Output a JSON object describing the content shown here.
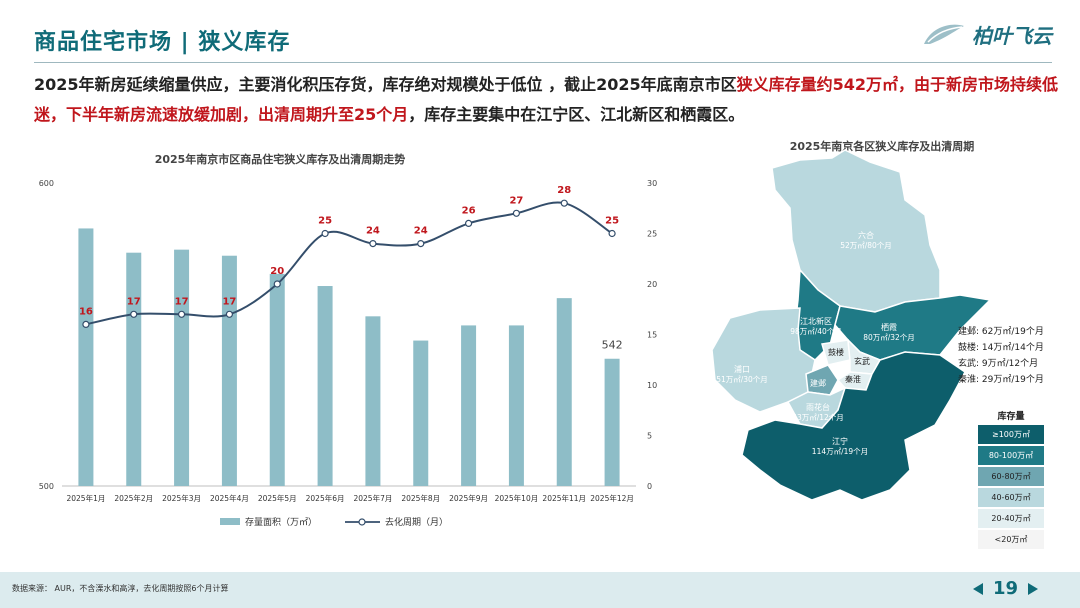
{
  "header": {
    "title": "商品住宅市场 | 狭义库存",
    "logo_text": "柏叶飞云"
  },
  "headline": {
    "part1": "2025年新房延续缩量供应，主要消化积压存货，库存绝对规模处于低位 ，截止2025年底南京市区",
    "part2": "狭义库存量约542万㎡，由于新房市场持续低迷，下半年新房流速放缓加剧，出清周期升至25个月",
    "part3": "，库存主要集中在江宁区、江北新区和栖霞区。"
  },
  "chart_data": {
    "type": "bar",
    "title": "2025年南京市区商品住宅狭义库存及出清周期走势",
    "categories": [
      "2025年1月",
      "2025年2月",
      "2025年3月",
      "2025年4月",
      "2025年5月",
      "2025年6月",
      "2025年7月",
      "2025年8月",
      "2025年9月",
      "2025年10月",
      "2025年11月",
      "2025年12月"
    ],
    "series": [
      {
        "name": "存量面积（万㎡）",
        "type": "bar",
        "axis": "left",
        "color": "#8ebdc7",
        "values": [
          585,
          577,
          578,
          576,
          570,
          566,
          556,
          548,
          553,
          553,
          562,
          542
        ],
        "labels": [
          "",
          "",
          "",
          "",
          "",
          "",
          "",
          "",
          "",
          "",
          "",
          "542"
        ]
      },
      {
        "name": "去化周期（月）",
        "type": "line",
        "axis": "right",
        "color": "#344e6b",
        "values": [
          16,
          17,
          17,
          17,
          20,
          25,
          24,
          24,
          26,
          27,
          28,
          25
        ]
      }
    ],
    "y_left": {
      "ticks": [
        "600",
        "500"
      ],
      "range": [
        500,
        600
      ]
    },
    "y_right": {
      "ticks": [
        "30",
        "25",
        "20",
        "15",
        "10",
        "5",
        "0"
      ],
      "range": [
        0,
        30
      ]
    },
    "legend": "bottom",
    "grid": false
  },
  "map": {
    "title": "2025年南京各区狭义库存及出清周期",
    "regions": [
      {
        "id": "luhe",
        "name": "六合",
        "value": "52万㎡/80个月",
        "color": "#b9d8de"
      },
      {
        "id": "jiangbei",
        "name": "江北新区",
        "value": "98万㎡/40个月",
        "color": "#1f7a86"
      },
      {
        "id": "qixia",
        "name": "栖霞",
        "value": "80万㎡/32个月",
        "color": "#1f7a86"
      },
      {
        "id": "pukou",
        "name": "浦口",
        "value": "51万㎡/30个月",
        "color": "#b9d8de"
      },
      {
        "id": "yuhuatai",
        "name": "雨花台",
        "value": "43万㎡/12个月",
        "color": "#b9d8de"
      },
      {
        "id": "jiangning",
        "name": "江宁",
        "value": "114万㎡/19个月",
        "color": "#0d5e6b"
      },
      {
        "id": "gulou",
        "name": "鼓楼",
        "value": "",
        "color": "#e3eff1"
      },
      {
        "id": "xuanwu",
        "name": "玄武",
        "value": "",
        "color": "#e3eff1"
      },
      {
        "id": "qinhuai",
        "name": "秦淮",
        "value": "",
        "color": "#e3eff1"
      },
      {
        "id": "jianye",
        "name": "建邺",
        "value": "",
        "color": "#6fa6b1"
      }
    ],
    "side_list": [
      {
        "name": "建邺:",
        "value": "62万㎡/19个月"
      },
      {
        "name": "鼓楼:",
        "value": "14万㎡/14个月"
      },
      {
        "name": "玄武:",
        "value": "9万㎡/12个月"
      },
      {
        "name": "秦淮:",
        "value": "29万㎡/19个月"
      }
    ],
    "legend_title": "库存量",
    "legend": [
      {
        "label": "≥100万㎡",
        "color": "#0d5e6b",
        "text_color": "#ffffff"
      },
      {
        "label": "80-100万㎡",
        "color": "#1f7a86",
        "text_color": "#ffffff"
      },
      {
        "label": "60-80万㎡",
        "color": "#6fa6b1",
        "text_color": "#222222"
      },
      {
        "label": "40-60万㎡",
        "color": "#b9d8de",
        "text_color": "#222222"
      },
      {
        "label": "20-40万㎡",
        "color": "#e3eff1",
        "text_color": "#222222"
      },
      {
        "label": "<20万㎡",
        "color": "#f4f4f4",
        "text_color": "#222222"
      }
    ]
  },
  "footer": {
    "note": "数据来源： AUR，不含溧水和高淳，去化周期按照6个月计算",
    "page": "19"
  }
}
